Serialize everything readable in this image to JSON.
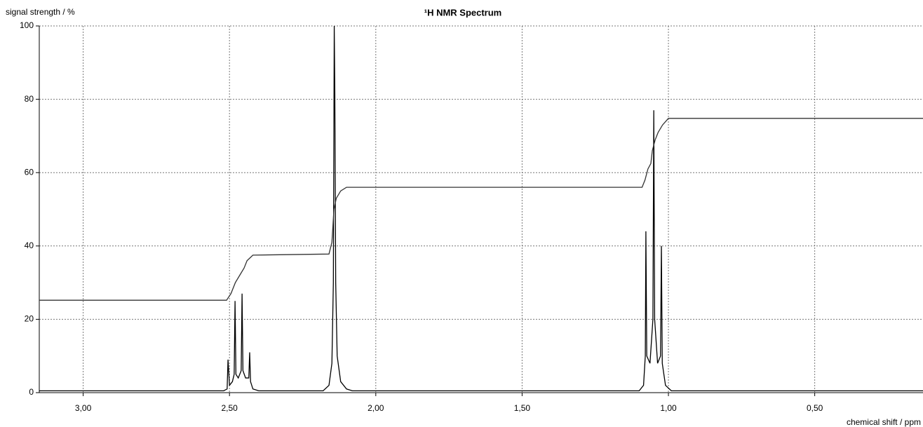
{
  "chart_data": {
    "type": "line",
    "title": "¹H NMR Spectrum",
    "y_label": "signal strength / %",
    "x_label": "chemical shift / ppm",
    "xlim": [
      3.15,
      0.13
    ],
    "ylim": [
      0,
      100
    ],
    "xticks": [
      {
        "value": 3,
        "label": "3,00"
      },
      {
        "value": 2.5,
        "label": "2,50"
      },
      {
        "value": 2,
        "label": "2,00"
      },
      {
        "value": 1.5,
        "label": "1,50"
      },
      {
        "value": 1,
        "label": "1,00"
      },
      {
        "value": 0.5,
        "label": "0,50"
      }
    ],
    "yticks": [
      0,
      20,
      40,
      60,
      80,
      100
    ],
    "grid": true,
    "series": [
      {
        "color": "#000000",
        "x": [
          3.15,
          2.52,
          2.508,
          2.505,
          2.5,
          2.49,
          2.484,
          2.481,
          2.478,
          2.47,
          2.46,
          2.457,
          2.454,
          2.445,
          2.434,
          2.431,
          2.428,
          2.42,
          2.4,
          2.18,
          2.16,
          2.15,
          2.145,
          2.142,
          2.14,
          2.137,
          2.132,
          2.12,
          2.1,
          2.08,
          1.1,
          1.085,
          1.079,
          1.077,
          1.074,
          1.063,
          1.053,
          1.05,
          1.047,
          1.037,
          1.027,
          1.024,
          1.021,
          1.01,
          0.99,
          0.13
        ],
        "values": [
          0.5,
          0.5,
          1,
          9,
          2,
          3,
          5,
          25,
          5,
          4,
          6,
          27,
          6,
          4,
          4,
          11,
          3,
          1,
          0.5,
          0.5,
          2,
          8,
          30,
          100,
          82,
          30,
          10,
          3,
          1,
          0.5,
          0.5,
          2,
          10,
          44,
          10,
          8,
          20,
          77,
          20,
          8,
          10,
          40,
          8,
          2,
          0.5,
          0.5
        ]
      },
      {
        "color": "#333333",
        "x": [
          3.15,
          2.51,
          2.495,
          2.48,
          2.465,
          2.45,
          2.44,
          2.42,
          2.16,
          2.15,
          2.143,
          2.135,
          2.12,
          2.1,
          1.09,
          1.08,
          1.07,
          1.06,
          1.055,
          1.045,
          1.035,
          1.02,
          1.0,
          0.13
        ],
        "values": [
          25.2,
          25.2,
          27,
          30,
          32,
          34,
          36,
          37.5,
          37.8,
          41,
          50,
          53,
          55,
          56,
          56,
          58,
          61,
          62.5,
          66,
          69,
          71,
          73,
          74.8,
          74.8
        ]
      }
    ]
  }
}
